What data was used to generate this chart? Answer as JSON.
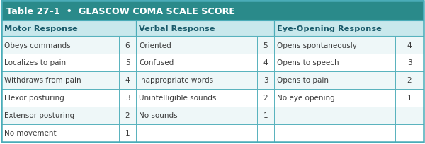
{
  "title": "Table 27–1  •  GLASCOW COMA SCALE SCORE",
  "title_bg": "#2a8a8a",
  "title_color": "white",
  "header_bg": "#c8e8ec",
  "row_bg_light": "#eef7f8",
  "row_bg_white": "#ffffff",
  "border_color": "#4aacb8",
  "text_color": "#3a3a3a",
  "header_text_color": "#1a5a6a",
  "motor": [
    [
      "Obeys commands",
      "6"
    ],
    [
      "Localizes to pain",
      "5"
    ],
    [
      "Withdraws from pain",
      "4"
    ],
    [
      "Flexor posturing",
      "3"
    ],
    [
      "Extensor posturing",
      "2"
    ],
    [
      "No movement",
      "1"
    ]
  ],
  "verbal": [
    [
      "Oriented",
      "5"
    ],
    [
      "Confused",
      "4"
    ],
    [
      "Inappropriate words",
      "3"
    ],
    [
      "Unintelligible sounds",
      "2"
    ],
    [
      "No sounds",
      "1"
    ],
    [
      "",
      ""
    ]
  ],
  "eye": [
    [
      "Opens spontaneously",
      "4"
    ],
    [
      "Opens to speech",
      "3"
    ],
    [
      "Opens to pain",
      "2"
    ],
    [
      "No eye opening",
      "1"
    ],
    [
      "",
      ""
    ],
    [
      "",
      ""
    ]
  ],
  "figsize": [
    6.0,
    2.05
  ],
  "dpi": 100
}
